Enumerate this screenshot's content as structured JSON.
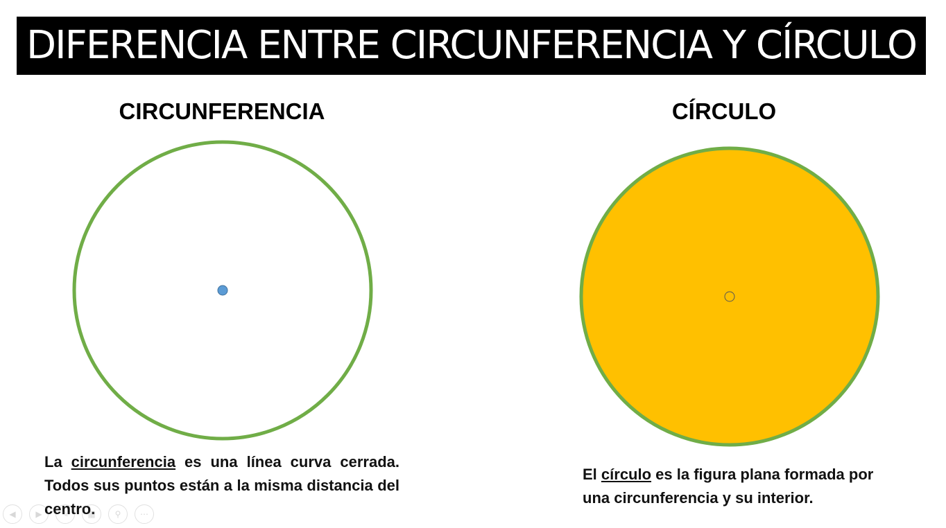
{
  "title": "DIFERENCIA ENTRE CIRCUNFERENCIA Y CÍRCULO",
  "left": {
    "heading": "CIRCUNFERENCIA",
    "text_pre": "La ",
    "text_term": "circunferencia",
    "text_post": " es una línea curva cerrada. Todos sus puntos están a la misma distancia del centro.",
    "stroke": "#70ad47",
    "center_color": "#5b9bd5"
  },
  "right": {
    "heading": "CÍRCULO",
    "text_pre": "El ",
    "text_term": "círculo",
    "text_post": " es la figura plana formada por una circunferencia y su interior.",
    "stroke": "#70ad47",
    "fill": "#ffc000"
  },
  "controls": [
    "previous-icon",
    "next-icon",
    "pen-icon",
    "slides-icon",
    "zoom-icon",
    "more-icon"
  ]
}
